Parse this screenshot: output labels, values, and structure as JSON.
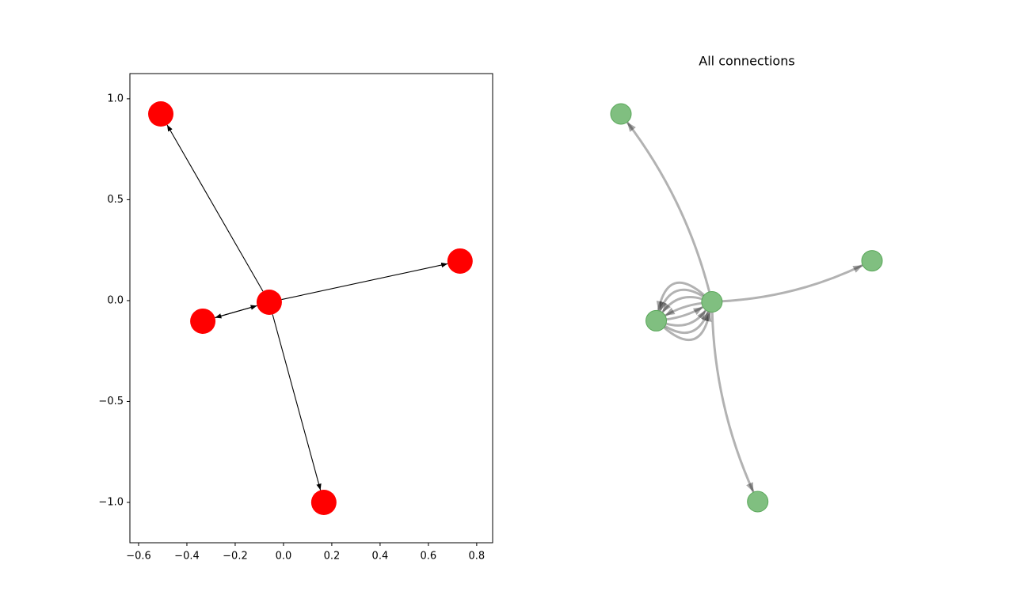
{
  "chart_data": [
    {
      "type": "network",
      "x": [
        -0.508,
        -0.334,
        -0.059,
        0.731,
        0.167
      ],
      "y": [
        0.925,
        -0.102,
        -0.008,
        0.196,
        -1.0
      ],
      "edges": [
        [
          2,
          0
        ],
        [
          2,
          3
        ],
        [
          2,
          4
        ],
        [
          2,
          1
        ],
        [
          1,
          2
        ]
      ],
      "color": "#ff0000",
      "edge_color": "#000000",
      "xlim": [
        -0.636,
        0.866
      ],
      "ylim": [
        -1.2,
        1.125
      ],
      "xticks": [
        {
          "value": -0.6,
          "label": "−0.6"
        },
        {
          "value": -0.4,
          "label": "−0.4"
        },
        {
          "value": -0.2,
          "label": "−0.2"
        },
        {
          "value": 0.0,
          "label": "0.0"
        },
        0.2,
        0.4,
        0.6,
        0.8
      ],
      "yticks": [
        {
          "value": -1.0,
          "label": "−1.0"
        },
        {
          "value": -0.5,
          "label": "−0.5"
        },
        {
          "value": 0.0,
          "label": "0.0"
        },
        0.5,
        {
          "value": 1.0,
          "label": "1.0"
        }
      ]
    },
    {
      "type": "network",
      "title": "All connections",
      "x": [
        -0.508,
        -0.334,
        -0.059,
        0.731,
        0.167
      ],
      "y": [
        0.925,
        -0.102,
        -0.008,
        0.196,
        -1.0
      ],
      "edges": [
        [
          2,
          0
        ],
        [
          2,
          3
        ],
        [
          2,
          4
        ],
        [
          2,
          1
        ],
        [
          2,
          1
        ],
        [
          2,
          1
        ],
        [
          2,
          1
        ],
        [
          1,
          2
        ],
        [
          1,
          2
        ],
        [
          1,
          2
        ],
        [
          1,
          2
        ]
      ],
      "color": "#80bf80",
      "edge_color": "#000000"
    }
  ]
}
